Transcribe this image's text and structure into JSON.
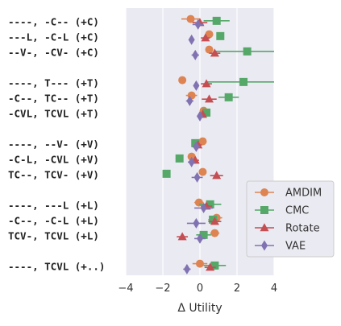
{
  "chart_data": {
    "type": "scatter",
    "title": "",
    "xlabel": "Δ Utility",
    "ylabel": "",
    "xlim": [
      -4,
      4
    ],
    "xticks": [
      -4,
      -2,
      0,
      2,
      4
    ],
    "xtick_labels": [
      "−4",
      "−2",
      "0",
      "2",
      "4"
    ],
    "grid": true,
    "legend_position": "lower-right",
    "categories": [
      "----, -C-- (+C)",
      "---L, -C-L (+C)",
      "--V-, -CV- (+C)",
      "",
      "----, T--- (+T)",
      "-C--, TC-- (+T)",
      "-CVL, TCVL (+T)",
      "",
      "----, --V- (+V)",
      "-C-L, -CVL (+V)",
      "TC--, TCV- (+V)",
      "",
      "----, ---L (+L)",
      "-C--, -C-L (+L)",
      "TCV-, TCVL (+L)",
      "",
      "----, TCVL (+..)"
    ],
    "series": [
      {
        "name": "AMDIM",
        "color": "#dd8452",
        "marker": "circle",
        "offset": -0.18,
        "values": [
          -0.5,
          0.5,
          0.5,
          null,
          -0.95,
          -0.45,
          0.2,
          null,
          0.15,
          -0.45,
          0.15,
          null,
          -0.05,
          0.9,
          0.8,
          null,
          0.0
        ],
        "err": [
          0.5,
          0.2,
          0.2,
          null,
          0.15,
          0.3,
          0.1,
          null,
          0.2,
          0.2,
          0.15,
          null,
          0.25,
          0.3,
          0.25,
          null,
          0.4
        ]
      },
      {
        "name": "CMC",
        "color": "#55a868",
        "marker": "square",
        "offset": -0.06,
        "values": [
          0.9,
          1.1,
          2.55,
          null,
          2.35,
          1.55,
          0.35,
          null,
          -0.25,
          -1.1,
          -1.8,
          null,
          0.55,
          0.7,
          0.2,
          null,
          0.8
        ],
        "err": [
          0.7,
          0.2,
          1.8,
          null,
          2.0,
          0.55,
          0.1,
          null,
          0.2,
          0.2,
          0.15,
          null,
          0.6,
          0.25,
          0.4,
          null,
          0.6
        ]
      },
      {
        "name": "Rotate",
        "color": "#c44e52",
        "marker": "triangle",
        "offset": 0.06,
        "values": [
          0.0,
          0.3,
          0.8,
          null,
          0.35,
          0.5,
          0.15,
          null,
          -0.1,
          -0.25,
          0.9,
          null,
          0.35,
          0.8,
          -0.95,
          null,
          0.55
        ],
        "err": [
          0.4,
          0.25,
          0.3,
          null,
          0.3,
          0.4,
          0.15,
          null,
          0.2,
          0.2,
          0.35,
          null,
          0.3,
          0.35,
          0.3,
          null,
          0.3
        ]
      },
      {
        "name": "VAE",
        "color": "#8172b2",
        "marker": "diamond",
        "offset": 0.18,
        "values": [
          -0.1,
          -0.45,
          -0.25,
          null,
          -0.2,
          -0.55,
          0.0,
          null,
          -0.2,
          -0.45,
          -0.15,
          null,
          0.2,
          -0.2,
          0.0,
          null,
          -0.7
        ],
        "err": [
          0.3,
          0.1,
          0.2,
          null,
          0.15,
          0.2,
          0.1,
          null,
          0.2,
          0.2,
          0.3,
          null,
          0.5,
          0.5,
          0.3,
          null,
          0.2
        ]
      }
    ]
  }
}
